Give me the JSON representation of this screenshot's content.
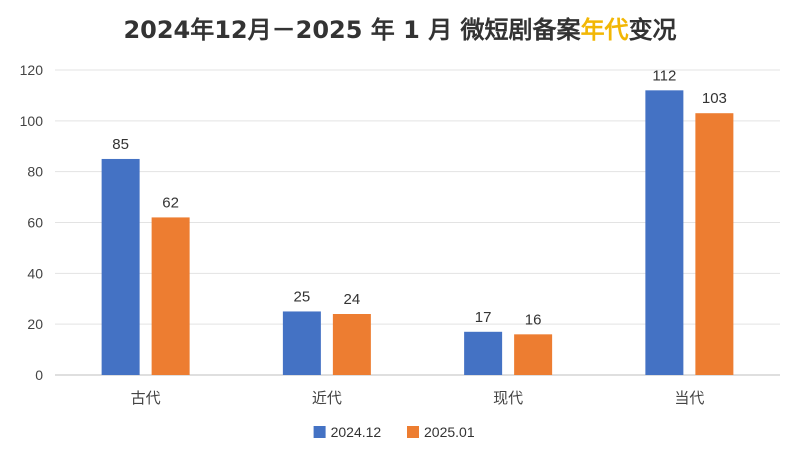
{
  "chart_data": {
    "type": "bar",
    "title_parts": [
      "2024年12月－2025 年 1 月 微短剧备案",
      "年代",
      "变况"
    ],
    "categories": [
      "古代",
      "近代",
      "现代",
      "当代"
    ],
    "series": [
      {
        "name": "2024.12",
        "values": [
          85,
          25,
          17,
          112
        ],
        "color": "#4472c4"
      },
      {
        "name": "2025.01",
        "values": [
          62,
          24,
          16,
          103
        ],
        "color": "#ed7d31"
      }
    ],
    "ylim": [
      0,
      120
    ],
    "yticks": [
      0,
      20,
      40,
      60,
      80,
      100,
      120
    ],
    "grid": true,
    "legend_position": "bottom",
    "xlabel": "",
    "ylabel": ""
  }
}
